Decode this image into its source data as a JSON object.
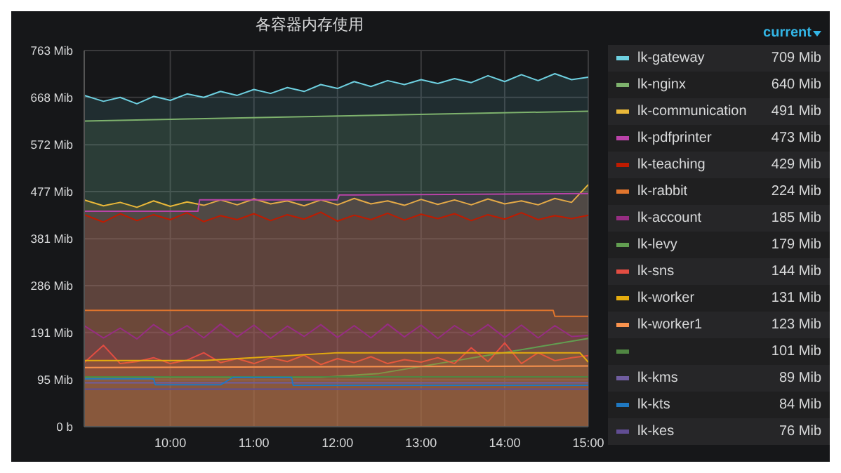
{
  "chart_data": {
    "type": "area",
    "title": "各容器内存使用",
    "legend_title": "current",
    "legend": "right",
    "annotations": [
      "709 Mib",
      "640 Mib",
      "491 Mib",
      "473 Mib",
      "429 Mib",
      "224 Mib",
      "185 Mib",
      "179 Mib",
      "144 Mib",
      "131 Mib",
      "123 Mib",
      "101 Mib",
      "89 Mib",
      "84 Mib",
      "76 Mib"
    ],
    "grid": true,
    "xlim": [
      8.97,
      15
    ],
    "xticks": [
      {
        "value": 10,
        "label": "10:00"
      },
      {
        "value": 11,
        "label": "11:00"
      },
      {
        "value": 12,
        "label": "12:00"
      },
      {
        "value": 13,
        "label": "13:00"
      },
      {
        "value": 14,
        "label": "14:00"
      },
      {
        "value": 15,
        "label": "15:00"
      }
    ],
    "ylim": [
      0,
      763
    ],
    "yticks": [
      {
        "value": 0,
        "label": "0 b"
      },
      {
        "value": 95,
        "label": "95 Mib"
      },
      {
        "value": 191,
        "label": "191 Mib"
      },
      {
        "value": 286,
        "label": "286 Mib"
      },
      {
        "value": 381,
        "label": "381 Mib"
      },
      {
        "value": 477,
        "label": "477 Mib"
      },
      {
        "value": 572,
        "label": "572 Mib"
      },
      {
        "value": 668,
        "label": "668 Mib"
      },
      {
        "value": 763,
        "label": "763 Mib"
      }
    ],
    "series": [
      {
        "name": "lk-gateway",
        "color": "#6ed0e0",
        "x": [
          8.97,
          9.2,
          9.4,
          9.6,
          9.8,
          10,
          10.2,
          10.4,
          10.6,
          10.8,
          11,
          11.2,
          11.4,
          11.6,
          11.8,
          12,
          12.2,
          12.4,
          12.6,
          12.8,
          13,
          13.2,
          13.4,
          13.6,
          13.8,
          14,
          14.2,
          14.4,
          14.6,
          14.8,
          15
        ],
        "values": [
          672,
          660,
          668,
          655,
          670,
          662,
          675,
          668,
          680,
          672,
          684,
          676,
          688,
          680,
          694,
          686,
          700,
          690,
          702,
          694,
          704,
          696,
          706,
          698,
          712,
          700,
          714,
          702,
          716,
          704,
          709
        ]
      },
      {
        "name": "lk-nginx",
        "color": "#7eb26d",
        "x": [
          8.97,
          15
        ],
        "values": [
          620,
          640
        ]
      },
      {
        "name": "lk-communication",
        "color": "#eab839",
        "x": [
          8.97,
          9.2,
          9.4,
          9.6,
          9.8,
          10,
          10.2,
          10.4,
          10.6,
          10.8,
          11,
          11.2,
          11.4,
          11.6,
          11.8,
          12,
          12.2,
          12.4,
          12.6,
          12.8,
          13,
          13.2,
          13.4,
          13.6,
          13.8,
          14,
          14.2,
          14.4,
          14.6,
          14.8,
          15
        ],
        "values": [
          460,
          448,
          455,
          445,
          458,
          447,
          456,
          449,
          460,
          450,
          462,
          452,
          458,
          448,
          460,
          450,
          463,
          452,
          458,
          449,
          461,
          451,
          460,
          450,
          462,
          452,
          458,
          450,
          463,
          455,
          491
        ]
      },
      {
        "name": "lk-pdfprinter",
        "color": "#ba43a9",
        "x": [
          8.97,
          10.33,
          10.35,
          12,
          12.02,
          15
        ],
        "values": [
          437,
          437,
          460,
          460,
          470,
          473
        ]
      },
      {
        "name": "lk-teaching",
        "color": "#bf1b00",
        "x": [
          8.97,
          9.2,
          9.4,
          9.6,
          9.8,
          10,
          10.2,
          10.4,
          10.6,
          10.8,
          11,
          11.2,
          11.4,
          11.6,
          11.8,
          12,
          12.2,
          12.4,
          12.6,
          12.8,
          13,
          13.2,
          13.4,
          13.6,
          13.8,
          14,
          14.2,
          14.4,
          14.6,
          14.8,
          15
        ],
        "values": [
          430,
          415,
          432,
          418,
          430,
          420,
          434,
          416,
          428,
          420,
          432,
          418,
          430,
          421,
          435,
          417,
          429,
          420,
          433,
          419,
          431,
          422,
          432,
          418,
          430,
          421,
          434,
          420,
          428,
          422,
          429
        ]
      },
      {
        "name": "lk-rabbit",
        "color": "#e0752d",
        "x": [
          8.97,
          14.58,
          14.6,
          15
        ],
        "values": [
          236,
          236,
          224,
          224
        ]
      },
      {
        "name": "lk-account",
        "color": "#962d82",
        "x": [
          8.97,
          9.2,
          9.4,
          9.6,
          9.8,
          10,
          10.2,
          10.4,
          10.6,
          10.8,
          11,
          11.2,
          11.4,
          11.6,
          11.8,
          12,
          12.2,
          12.4,
          12.6,
          12.8,
          13,
          13.2,
          13.4,
          13.6,
          13.8,
          14,
          14.2,
          14.4,
          14.6,
          14.8,
          15
        ],
        "values": [
          205,
          180,
          200,
          178,
          207,
          185,
          205,
          180,
          208,
          182,
          206,
          179,
          204,
          183,
          207,
          181,
          205,
          180,
          208,
          182,
          206,
          179,
          205,
          184,
          207,
          181,
          206,
          180,
          205,
          183,
          185
        ]
      },
      {
        "name": "lk-levy",
        "color": "#629e51",
        "x": [
          8.97,
          11.8,
          12.5,
          15
        ],
        "values": [
          100,
          100,
          108,
          179
        ]
      },
      {
        "name": "lk-sns",
        "color": "#e24d42",
        "x": [
          8.97,
          9.2,
          9.4,
          9.6,
          9.8,
          10,
          10.2,
          10.4,
          10.6,
          10.8,
          11,
          11.2,
          11.4,
          11.6,
          11.8,
          12,
          12.2,
          12.4,
          12.6,
          12.8,
          13,
          13.2,
          13.4,
          13.6,
          13.8,
          14,
          14.2,
          14.4,
          14.6,
          14.8,
          15
        ],
        "values": [
          130,
          165,
          128,
          132,
          140,
          128,
          135,
          150,
          130,
          138,
          128,
          140,
          132,
          145,
          126,
          138,
          130,
          142,
          128,
          136,
          131,
          140,
          128,
          160,
          132,
          170,
          128,
          150,
          134,
          140,
          144
        ]
      },
      {
        "name": "lk-worker",
        "color": "#e5ac0e",
        "x": [
          8.97,
          10.4,
          12,
          14.9,
          15
        ],
        "values": [
          134,
          134,
          150,
          150,
          131
        ]
      },
      {
        "name": "lk-worker1",
        "type": "line",
        "color": "#f9934e",
        "x": [
          8.97,
          15
        ],
        "values": [
          120,
          123
        ]
      },
      {
        "type": "line",
        "color": "#508642",
        "x": [
          8.97,
          15
        ],
        "values": [
          101,
          101
        ]
      },
      {
        "name": "lk-kms",
        "type": "line",
        "color": "#705da0",
        "x": [
          8.97,
          15
        ],
        "values": [
          89,
          89
        ]
      },
      {
        "name": "lk-kts",
        "type": "line",
        "color": "#1f78c1",
        "x": [
          8.97,
          9.8,
          9.82,
          10.6,
          10.75,
          11.45,
          11.47,
          15
        ],
        "values": [
          97,
          97,
          85,
          85,
          100,
          100,
          84,
          84
        ]
      },
      {
        "name": "lk-kes",
        "type": "line",
        "color": "#614d93",
        "x": [
          8.97,
          15
        ],
        "values": [
          76,
          76
        ]
      }
    ]
  }
}
